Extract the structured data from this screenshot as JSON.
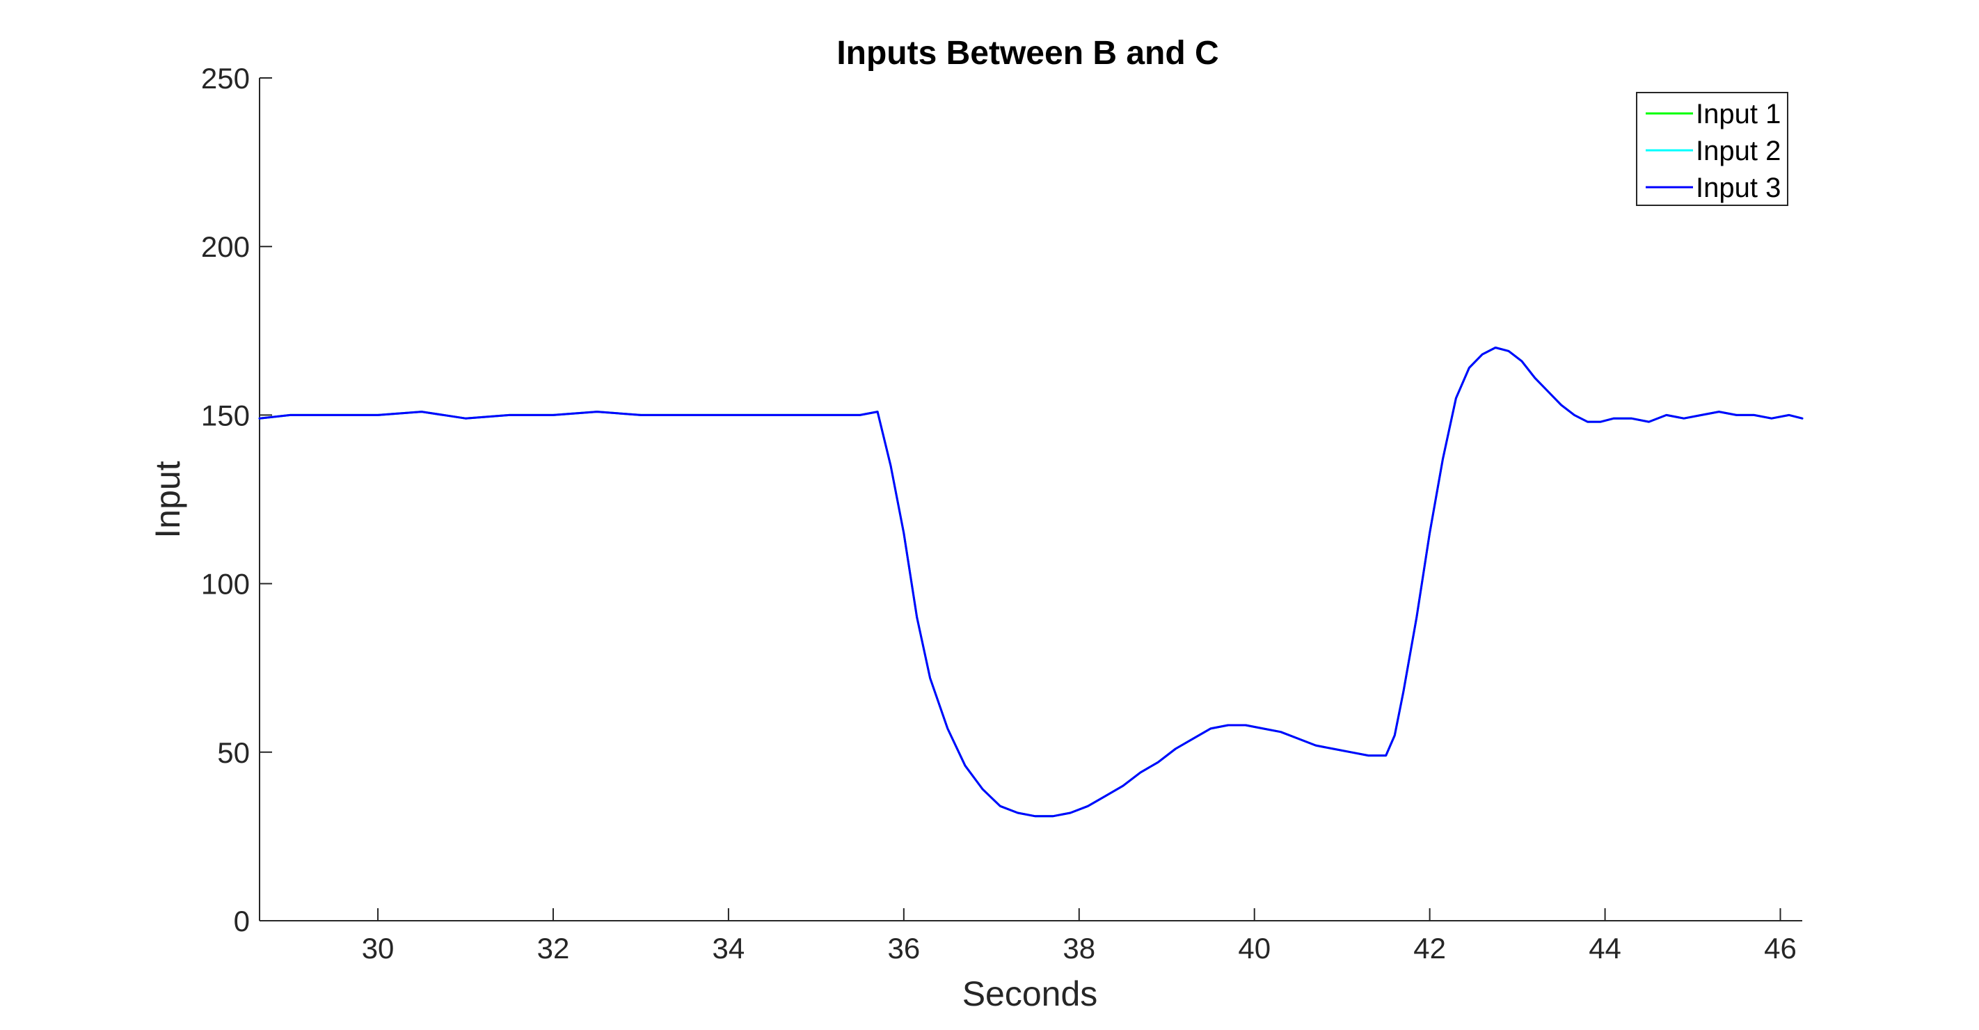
{
  "chart_data": {
    "type": "line",
    "title": "Inputs Between B and C",
    "xlabel": "Seconds",
    "ylabel": "Input",
    "xlim": [
      28.65,
      46.25
    ],
    "ylim": [
      0,
      250
    ],
    "xticks": [
      30,
      32,
      34,
      36,
      38,
      40,
      42,
      44,
      46
    ],
    "xtick_labels": [
      "30",
      "32",
      "34",
      "36",
      "38",
      "40",
      "42",
      "44",
      "46"
    ],
    "yticks": [
      0,
      50,
      100,
      150,
      200,
      250
    ],
    "ytick_labels": [
      "0",
      "50",
      "100",
      "150",
      "200",
      "250"
    ],
    "grid": false,
    "legend": {
      "placement": "top-right",
      "entries": [
        "Input 1",
        "Input 2",
        "Input 3"
      ]
    },
    "series": [
      {
        "name": "Input 1",
        "color": "#00ff00",
        "x": [
          28.65,
          29.0,
          29.5,
          30.0,
          30.5,
          31.0,
          31.5,
          32.0,
          32.5,
          33.0,
          33.5,
          34.0,
          34.5,
          35.0,
          35.5,
          35.7,
          35.85,
          36.0,
          36.15,
          36.3,
          36.5,
          36.7,
          36.9,
          37.1,
          37.3,
          37.5,
          37.7,
          37.9,
          38.1,
          38.3,
          38.5,
          38.7,
          38.9,
          39.1,
          39.3,
          39.5,
          39.7,
          39.9,
          40.1,
          40.3,
          40.5,
          40.7,
          40.9,
          41.1,
          41.3,
          41.5,
          41.6,
          41.7,
          41.85,
          42.0,
          42.15,
          42.3,
          42.45,
          42.6,
          42.75,
          42.9,
          43.05,
          43.2,
          43.35,
          43.5,
          43.65,
          43.8,
          43.95,
          44.1,
          44.3,
          44.5,
          44.7,
          44.9,
          45.1,
          45.3,
          45.5,
          45.7,
          45.9,
          46.1,
          46.25
        ],
        "values": [
          149,
          150,
          150,
          150,
          151,
          149,
          150,
          150,
          151,
          150,
          150,
          150,
          150,
          150,
          150,
          151,
          135,
          115,
          90,
          72,
          57,
          46,
          39,
          34,
          32,
          31,
          31,
          32,
          34,
          37,
          40,
          44,
          47,
          51,
          54,
          57,
          58,
          58,
          57,
          56,
          54,
          52,
          51,
          50,
          49,
          49,
          55,
          68,
          90,
          115,
          137,
          155,
          164,
          168,
          170,
          169,
          166,
          161,
          157,
          153,
          150,
          148,
          148,
          149,
          149,
          148,
          150,
          149,
          150,
          151,
          150,
          150,
          149,
          150,
          149
        ]
      },
      {
        "name": "Input 2",
        "color": "#00ffff",
        "x": [
          28.65,
          29.0,
          29.5,
          30.0,
          30.5,
          31.0,
          31.5,
          32.0,
          32.5,
          33.0,
          33.5,
          34.0,
          34.5,
          35.0,
          35.5,
          35.7,
          35.85,
          36.0,
          36.15,
          36.3,
          36.5,
          36.7,
          36.9,
          37.1,
          37.3,
          37.5,
          37.7,
          37.9,
          38.1,
          38.3,
          38.5,
          38.7,
          38.9,
          39.1,
          39.3,
          39.5,
          39.7,
          39.9,
          40.1,
          40.3,
          40.5,
          40.7,
          40.9,
          41.1,
          41.3,
          41.5,
          41.6,
          41.7,
          41.85,
          42.0,
          42.15,
          42.3,
          42.45,
          42.6,
          42.75,
          42.9,
          43.05,
          43.2,
          43.35,
          43.5,
          43.65,
          43.8,
          43.95,
          44.1,
          44.3,
          44.5,
          44.7,
          44.9,
          45.1,
          45.3,
          45.5,
          45.7,
          45.9,
          46.1,
          46.25
        ],
        "values": [
          149,
          150,
          150,
          150,
          151,
          149,
          150,
          150,
          151,
          150,
          150,
          150,
          150,
          150,
          150,
          151,
          135,
          115,
          90,
          72,
          57,
          46,
          39,
          34,
          32,
          31,
          31,
          32,
          34,
          37,
          40,
          44,
          47,
          51,
          54,
          57,
          58,
          58,
          57,
          56,
          54,
          52,
          51,
          50,
          49,
          49,
          55,
          68,
          90,
          115,
          137,
          155,
          164,
          168,
          170,
          169,
          166,
          161,
          157,
          153,
          150,
          148,
          148,
          149,
          149,
          148,
          150,
          149,
          150,
          151,
          150,
          150,
          149,
          150,
          149
        ]
      },
      {
        "name": "Input 3",
        "color": "#0000ff",
        "x": [
          28.65,
          29.0,
          29.5,
          30.0,
          30.5,
          31.0,
          31.5,
          32.0,
          32.5,
          33.0,
          33.5,
          34.0,
          34.5,
          35.0,
          35.5,
          35.7,
          35.85,
          36.0,
          36.15,
          36.3,
          36.5,
          36.7,
          36.9,
          37.1,
          37.3,
          37.5,
          37.7,
          37.9,
          38.1,
          38.3,
          38.5,
          38.7,
          38.9,
          39.1,
          39.3,
          39.5,
          39.7,
          39.9,
          40.1,
          40.3,
          40.5,
          40.7,
          40.9,
          41.1,
          41.3,
          41.5,
          41.6,
          41.7,
          41.85,
          42.0,
          42.15,
          42.3,
          42.45,
          42.6,
          42.75,
          42.9,
          43.05,
          43.2,
          43.35,
          43.5,
          43.65,
          43.8,
          43.95,
          44.1,
          44.3,
          44.5,
          44.7,
          44.9,
          45.1,
          45.3,
          45.5,
          45.7,
          45.9,
          46.1,
          46.25
        ],
        "values": [
          149,
          150,
          150,
          150,
          151,
          149,
          150,
          150,
          151,
          150,
          150,
          150,
          150,
          150,
          150,
          151,
          135,
          115,
          90,
          72,
          57,
          46,
          39,
          34,
          32,
          31,
          31,
          32,
          34,
          37,
          40,
          44,
          47,
          51,
          54,
          57,
          58,
          58,
          57,
          56,
          54,
          52,
          51,
          50,
          49,
          49,
          55,
          68,
          90,
          115,
          137,
          155,
          164,
          168,
          170,
          169,
          166,
          161,
          157,
          153,
          150,
          148,
          148,
          149,
          149,
          148,
          150,
          149,
          150,
          151,
          150,
          150,
          149,
          150,
          149
        ]
      }
    ]
  }
}
